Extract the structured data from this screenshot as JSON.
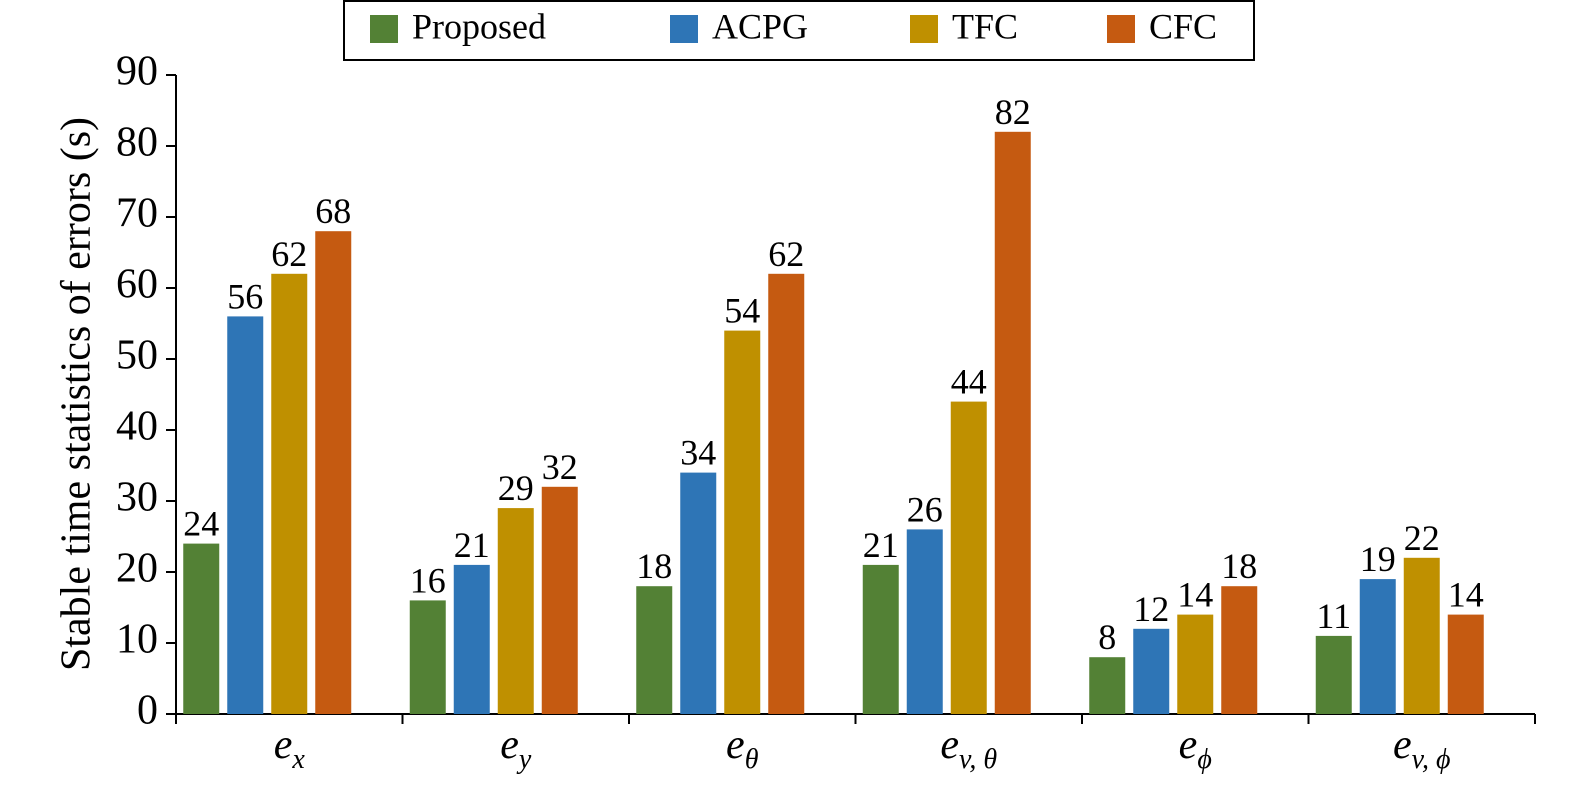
{
  "chart_data": {
    "type": "bar",
    "y_label": "Stable time statistics of errors (s)",
    "categories": [
      {
        "main": "e",
        "sub": "x"
      },
      {
        "main": "e",
        "sub": "y"
      },
      {
        "main": "e",
        "sub": "θ"
      },
      {
        "main": "e",
        "sub": "v, θ"
      },
      {
        "main": "e",
        "sub": "ϕ"
      },
      {
        "main": "e",
        "sub": "v, ϕ"
      }
    ],
    "series": [
      {
        "name": "Proposed",
        "color": "#538135",
        "values": [
          24,
          16,
          18,
          21,
          8,
          11
        ]
      },
      {
        "name": "ACPG",
        "color": "#2e75b6",
        "values": [
          56,
          21,
          34,
          26,
          12,
          19
        ]
      },
      {
        "name": "TFC",
        "color": "#bf9000",
        "values": [
          62,
          29,
          54,
          44,
          14,
          22
        ]
      },
      {
        "name": "CFC",
        "color": "#c55a11",
        "values": [
          68,
          32,
          62,
          82,
          18,
          14
        ]
      }
    ],
    "ylim": [
      0,
      90
    ],
    "yticks": [
      0,
      10,
      20,
      30,
      40,
      50,
      60,
      70,
      80,
      90
    ],
    "legend": "top"
  }
}
